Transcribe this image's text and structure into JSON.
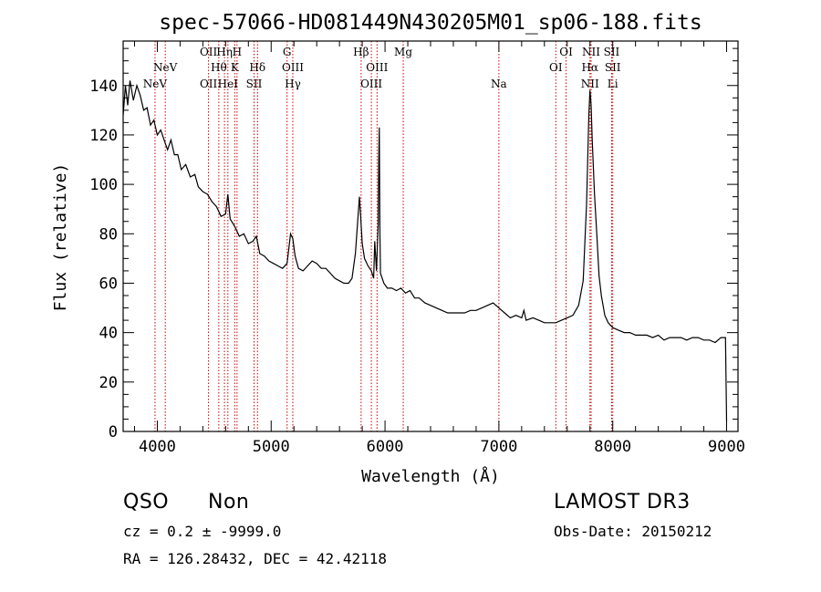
{
  "chart_data": {
    "type": "line",
    "title": "spec-57066-HD081449N430205M01_sp06-188.fits",
    "xlabel": "Wavelength (Å)",
    "ylabel": "Flux (relative)",
    "xlim": [
      3700,
      9100
    ],
    "ylim": [
      0,
      158
    ],
    "xticks": [
      4000,
      5000,
      6000,
      7000,
      8000,
      9000
    ],
    "yticks": [
      0,
      20,
      40,
      60,
      80,
      100,
      120,
      140
    ],
    "grid": false,
    "line_color": "#000000",
    "marker_color": "#cc0000",
    "spectrum": [
      [
        3700,
        128
      ],
      [
        3720,
        140
      ],
      [
        3740,
        132
      ],
      [
        3760,
        142
      ],
      [
        3790,
        134
      ],
      [
        3820,
        140
      ],
      [
        3850,
        136
      ],
      [
        3880,
        130
      ],
      [
        3910,
        131
      ],
      [
        3940,
        124
      ],
      [
        3970,
        126
      ],
      [
        4000,
        120
      ],
      [
        4030,
        122
      ],
      [
        4060,
        118
      ],
      [
        4090,
        114
      ],
      [
        4120,
        118
      ],
      [
        4150,
        112
      ],
      [
        4180,
        112
      ],
      [
        4210,
        106
      ],
      [
        4250,
        108
      ],
      [
        4290,
        103
      ],
      [
        4330,
        104
      ],
      [
        4360,
        99
      ],
      [
        4400,
        97
      ],
      [
        4440,
        96
      ],
      [
        4480,
        93
      ],
      [
        4520,
        91
      ],
      [
        4560,
        87
      ],
      [
        4600,
        88
      ],
      [
        4620,
        96
      ],
      [
        4640,
        86
      ],
      [
        4680,
        83
      ],
      [
        4720,
        79
      ],
      [
        4760,
        80
      ],
      [
        4800,
        76
      ],
      [
        4840,
        77
      ],
      [
        4870,
        79
      ],
      [
        4900,
        72
      ],
      [
        4940,
        71
      ],
      [
        4980,
        69
      ],
      [
        5020,
        68
      ],
      [
        5060,
        67
      ],
      [
        5100,
        66
      ],
      [
        5140,
        68
      ],
      [
        5170,
        80
      ],
      [
        5190,
        78
      ],
      [
        5210,
        71
      ],
      [
        5240,
        66
      ],
      [
        5280,
        65
      ],
      [
        5320,
        67
      ],
      [
        5360,
        69
      ],
      [
        5400,
        68
      ],
      [
        5440,
        66
      ],
      [
        5480,
        66
      ],
      [
        5520,
        64
      ],
      [
        5560,
        62
      ],
      [
        5600,
        61
      ],
      [
        5640,
        60
      ],
      [
        5680,
        60
      ],
      [
        5710,
        62
      ],
      [
        5740,
        72
      ],
      [
        5760,
        85
      ],
      [
        5775,
        95
      ],
      [
        5785,
        88
      ],
      [
        5800,
        76
      ],
      [
        5820,
        70
      ],
      [
        5850,
        67
      ],
      [
        5880,
        65
      ],
      [
        5900,
        62
      ],
      [
        5910,
        77
      ],
      [
        5925,
        65
      ],
      [
        5940,
        84
      ],
      [
        5945,
        110
      ],
      [
        5950,
        123
      ],
      [
        5955,
        80
      ],
      [
        5960,
        64
      ],
      [
        5990,
        60
      ],
      [
        6020,
        58
      ],
      [
        6060,
        58
      ],
      [
        6100,
        57
      ],
      [
        6140,
        58
      ],
      [
        6180,
        56
      ],
      [
        6220,
        57
      ],
      [
        6260,
        54
      ],
      [
        6300,
        54
      ],
      [
        6350,
        52
      ],
      [
        6400,
        51
      ],
      [
        6450,
        50
      ],
      [
        6500,
        49
      ],
      [
        6550,
        48
      ],
      [
        6600,
        48
      ],
      [
        6650,
        48
      ],
      [
        6700,
        48
      ],
      [
        6750,
        49
      ],
      [
        6800,
        49
      ],
      [
        6850,
        50
      ],
      [
        6900,
        51
      ],
      [
        6950,
        52
      ],
      [
        7000,
        50
      ],
      [
        7050,
        48
      ],
      [
        7100,
        46
      ],
      [
        7150,
        47
      ],
      [
        7200,
        46
      ],
      [
        7220,
        49
      ],
      [
        7240,
        45
      ],
      [
        7300,
        46
      ],
      [
        7350,
        45
      ],
      [
        7400,
        44
      ],
      [
        7450,
        44
      ],
      [
        7500,
        44
      ],
      [
        7550,
        45
      ],
      [
        7600,
        46
      ],
      [
        7650,
        47
      ],
      [
        7700,
        51
      ],
      [
        7740,
        61
      ],
      [
        7770,
        92
      ],
      [
        7790,
        128
      ],
      [
        7800,
        138
      ],
      [
        7810,
        132
      ],
      [
        7820,
        118
      ],
      [
        7840,
        96
      ],
      [
        7860,
        80
      ],
      [
        7880,
        63
      ],
      [
        7900,
        55
      ],
      [
        7930,
        47
      ],
      [
        7960,
        44
      ],
      [
        8000,
        42
      ],
      [
        8050,
        41
      ],
      [
        8100,
        40
      ],
      [
        8150,
        40
      ],
      [
        8200,
        39
      ],
      [
        8250,
        39
      ],
      [
        8300,
        39
      ],
      [
        8350,
        38
      ],
      [
        8400,
        39
      ],
      [
        8450,
        37
      ],
      [
        8500,
        38
      ],
      [
        8550,
        38
      ],
      [
        8600,
        38
      ],
      [
        8650,
        37
      ],
      [
        8700,
        38
      ],
      [
        8750,
        38
      ],
      [
        8800,
        37
      ],
      [
        8850,
        37
      ],
      [
        8900,
        36
      ],
      [
        8950,
        38
      ],
      [
        8990,
        38
      ],
      [
        9000,
        4
      ]
    ],
    "lines": [
      {
        "label": "NeV",
        "x": 3980,
        "row": 2
      },
      {
        "label": "NeV",
        "x": 4070,
        "row": 1
      },
      {
        "label": "OII",
        "x": 4450,
        "row": 0
      },
      {
        "label": "OII",
        "x": 4450,
        "row": 2
      },
      {
        "label": "Hθ",
        "x": 4540,
        "row": 1
      },
      {
        "label": "Hη",
        "x": 4590,
        "row": 0
      },
      {
        "label": "HeI",
        "x": 4620,
        "row": 2
      },
      {
        "label": "H",
        "x": 4700,
        "row": 0
      },
      {
        "label": "K",
        "x": 4680,
        "row": 1
      },
      {
        "label": "Hδ",
        "x": 4880,
        "row": 1
      },
      {
        "label": "SII",
        "x": 4850,
        "row": 2
      },
      {
        "label": "G",
        "x": 5140,
        "row": 0
      },
      {
        "label": "OIII",
        "x": 5190,
        "row": 1
      },
      {
        "label": "Hγ",
        "x": 5190,
        "row": 2
      },
      {
        "label": "Hβ",
        "x": 5790,
        "row": 0
      },
      {
        "label": "OIII",
        "x": 5930,
        "row": 1
      },
      {
        "label": "OIII",
        "x": 5880,
        "row": 2
      },
      {
        "label": "Mg",
        "x": 6160,
        "row": 0
      },
      {
        "label": "Na",
        "x": 7000,
        "row": 2
      },
      {
        "label": "OI",
        "x": 7590,
        "row": 0
      },
      {
        "label": "OI",
        "x": 7500,
        "row": 1
      },
      {
        "label": "NII",
        "x": 7810,
        "row": 0
      },
      {
        "label": "Hα",
        "x": 7800,
        "row": 1
      },
      {
        "label": "NII",
        "x": 7800,
        "row": 2
      },
      {
        "label": "SII",
        "x": 7990,
        "row": 0
      },
      {
        "label": "SII",
        "x": 8000,
        "row": 1
      },
      {
        "label": "Li",
        "x": 8000,
        "row": 2
      }
    ]
  },
  "footer": {
    "class_label": "QSO",
    "subclass_label": "Non",
    "survey_label": "LAMOST DR3",
    "cz_text": "cz = 0.2 ± -9999.0",
    "obs_date_text": "Obs-Date: 20150212",
    "coords_text": "RA = 126.28432, DEC =  42.42118"
  }
}
